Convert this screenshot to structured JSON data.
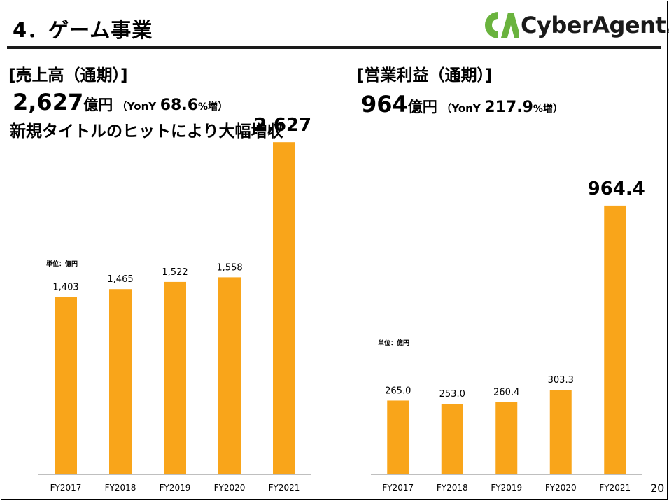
{
  "slide": {
    "title": "4．ゲーム事業",
    "page_number": "20"
  },
  "logo": {
    "mark": "CA",
    "text": "CyberAgent",
    "reg": "®",
    "colors": {
      "mark": "#6ab33e",
      "text": "#1a1a1a"
    }
  },
  "left": {
    "heading": "[売上高（通期）]",
    "amount": "2,627",
    "unit": "億円",
    "yony_open": "（YonY",
    "yony_value": "68.6",
    "yony_pct": "%増",
    "yony_close": "）",
    "note": "新規タイトルのヒットにより大幅増収",
    "unit_label": "単位：億円"
  },
  "right": {
    "heading": "[営業利益（通期）]",
    "amount": "964",
    "unit": "億円",
    "yony_open": "（YonY",
    "yony_value": "217.9",
    "yony_pct": "%増",
    "yony_close": "）",
    "unit_label": "単位：億円"
  },
  "colors": {
    "bar": "#f9a51a",
    "rule": "#1a1a1a"
  },
  "chart_data": [
    {
      "type": "bar",
      "title": "売上高（通期）",
      "unit": "億円",
      "categories": [
        "FY2017",
        "FY2018",
        "FY2019",
        "FY2020",
        "FY2021"
      ],
      "values": [
        1403,
        1465,
        1522,
        1558,
        2627
      ],
      "value_labels": [
        "1,403",
        "1,465",
        "1,522",
        "1,558",
        "2,627"
      ],
      "ylim": [
        0,
        2700
      ],
      "grid": false,
      "highlight_last_label": true
    },
    {
      "type": "bar",
      "title": "営業利益（通期）",
      "unit": "億円",
      "categories": [
        "FY2017",
        "FY2018",
        "FY2019",
        "FY2020",
        "FY2021"
      ],
      "values": [
        265.0,
        253.0,
        260.4,
        303.3,
        964.4
      ],
      "value_labels": [
        "265.0",
        "253.0",
        "260.4",
        "303.3",
        "964.4"
      ],
      "ylim": [
        0,
        1160
      ],
      "grid": false,
      "highlight_last_label": true
    }
  ]
}
